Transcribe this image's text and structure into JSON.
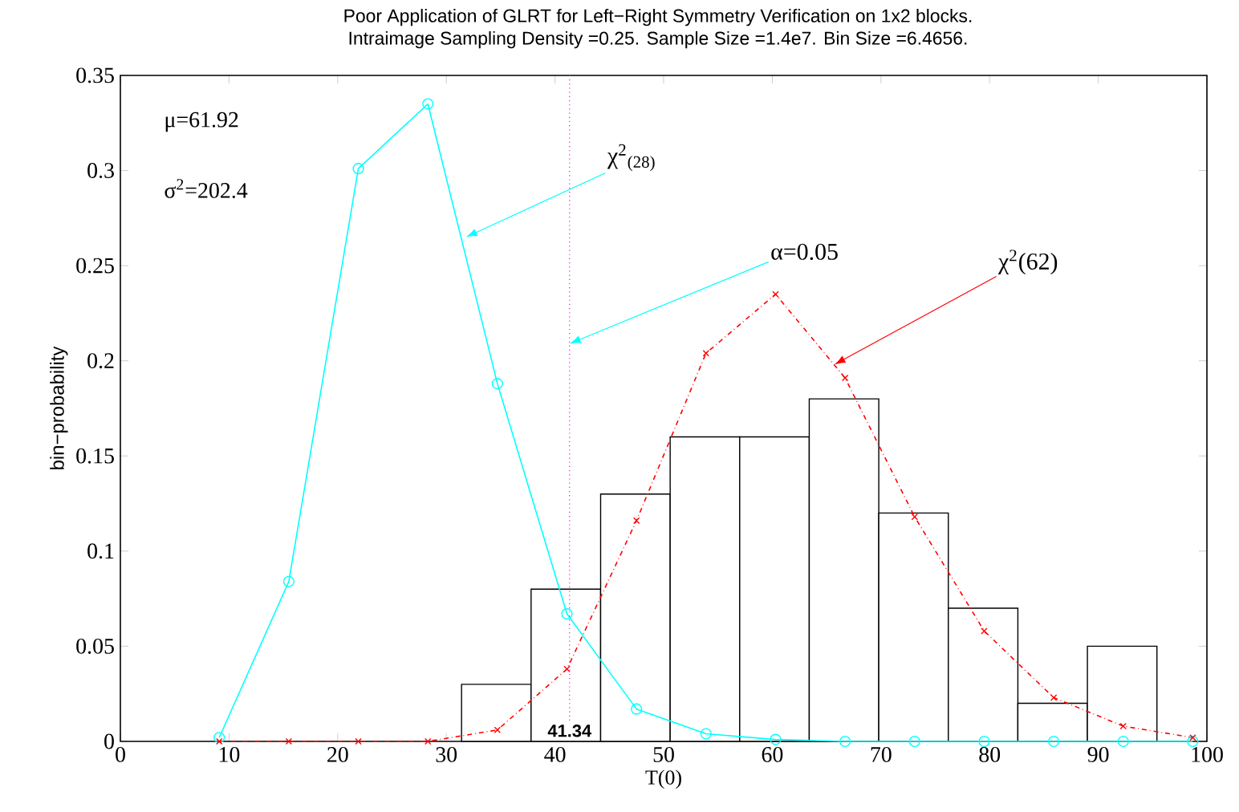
{
  "chart_data": {
    "type": "line",
    "title": "Poor Application of GLRT for Left−Right Symmetry Verification on 1x2 blocks.",
    "subtitle": "Intraimage Sampling Density =0.25. Sample Size =1.4e7. Bin Size =6.4656.",
    "xlabel": "T(0)",
    "ylabel": "bin−probability",
    "xlim": [
      0,
      100
    ],
    "ylim": [
      0,
      0.35
    ],
    "xticks": [
      0,
      10,
      20,
      30,
      40,
      50,
      60,
      70,
      80,
      90,
      100
    ],
    "yticks": [
      0,
      0.05,
      0.1,
      0.15,
      0.2,
      0.25,
      0.3,
      0.35
    ],
    "grid": false,
    "series": [
      {
        "type": "histogram",
        "color": "#000000",
        "bins": [
          31.4,
          37.8,
          44.2,
          50.6,
          57.0,
          63.4,
          69.8,
          76.2,
          82.6,
          89.0,
          95.4
        ],
        "values": [
          0.03,
          0.08,
          0.13,
          0.16,
          0.16,
          0.18,
          0.12,
          0.07,
          0.02,
          0.05
        ]
      },
      {
        "color": "#00ffff",
        "marker": "circle",
        "line_style": "solid",
        "x": [
          9.1,
          15.5,
          21.9,
          28.3,
          34.7,
          41.1,
          47.5,
          53.9,
          60.3,
          66.7,
          73.1,
          79.5,
          85.9,
          92.3,
          98.7
        ],
        "values": [
          0.002,
          0.084,
          0.301,
          0.335,
          0.188,
          0.067,
          0.017,
          0.004,
          0.001,
          0,
          0,
          0,
          0,
          0,
          0
        ]
      },
      {
        "color": "#ff0000",
        "marker": "cross",
        "line_style": "dashed",
        "x": [
          9.1,
          15.5,
          21.9,
          28.3,
          34.7,
          41.1,
          47.5,
          53.9,
          60.3,
          66.7,
          73.1,
          79.5,
          85.9,
          92.3,
          98.7
        ],
        "values": [
          0,
          0,
          0,
          0,
          0.006,
          0.038,
          0.116,
          0.204,
          0.235,
          0.191,
          0.118,
          0.058,
          0.023,
          0.008,
          0.002
        ]
      }
    ],
    "ref_lines": [
      {
        "axis": "x",
        "value": 41.34,
        "label": "41.34",
        "color": "#ff00ff",
        "line_style": "dotted"
      }
    ],
    "annotations": [
      "μ=61.92",
      "σ$^{2}$=202.4",
      {
        "text": "χ$^{2}$$_{(28)}$",
        "x": 31.8,
        "y": 0.265
      },
      {
        "text": "α=0.05",
        "x": 41.34,
        "y": 0.209
      },
      {
        "text": "χ$^{2}$(62)",
        "x": 65.7,
        "y": 0.198
      }
    ]
  }
}
